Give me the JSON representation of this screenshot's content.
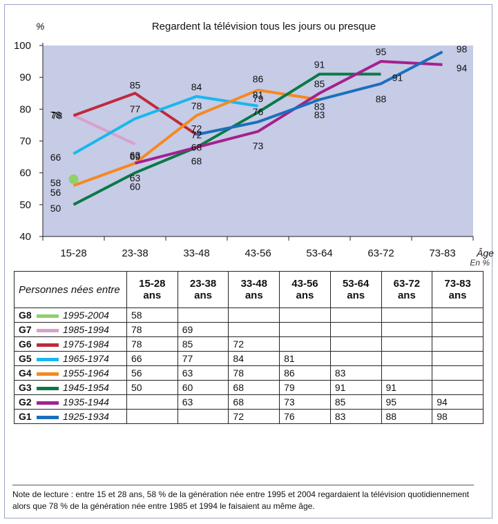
{
  "chart_data": {
    "type": "line",
    "title": "Regardent la télévision tous les jours ou presque",
    "ylabel": "%",
    "xlabel": "Âge",
    "ylim": [
      40,
      100
    ],
    "yticks": [
      40,
      50,
      60,
      70,
      80,
      90,
      100
    ],
    "grid": false,
    "categories": [
      "15-28",
      "23-38",
      "33-48",
      "43-56",
      "53-64",
      "63-72",
      "73-83"
    ],
    "series": [
      {
        "name": "G8",
        "period": "1995-2004",
        "color": "#8fd06a",
        "values": [
          58,
          null,
          null,
          null,
          null,
          null,
          null
        ]
      },
      {
        "name": "G7",
        "period": "1985-1994",
        "color": "#d9a0cc",
        "values": [
          78,
          69,
          null,
          null,
          null,
          null,
          null
        ]
      },
      {
        "name": "G6",
        "period": "1975-1984",
        "color": "#bf2a3a",
        "values": [
          78,
          85,
          72,
          null,
          null,
          null,
          null
        ]
      },
      {
        "name": "G5",
        "period": "1965-1974",
        "color": "#19b7ee",
        "values": [
          66,
          77,
          84,
          81,
          null,
          null,
          null
        ]
      },
      {
        "name": "G4",
        "period": "1955-1964",
        "color": "#f5891f",
        "values": [
          56,
          63,
          78,
          86,
          83,
          null,
          null
        ]
      },
      {
        "name": "G3",
        "period": "1945-1954",
        "color": "#0a7a45",
        "values": [
          50,
          60,
          68,
          79,
          91,
          91,
          null
        ]
      },
      {
        "name": "G2",
        "period": "1935-1944",
        "color": "#a3218e",
        "values": [
          null,
          63,
          68,
          73,
          85,
          95,
          94
        ]
      },
      {
        "name": "G1",
        "period": "1925-1934",
        "color": "#1a6fbc",
        "values": [
          null,
          null,
          72,
          76,
          83,
          88,
          98
        ]
      }
    ]
  },
  "chart_colors": {
    "plot_background": "#c6cbe6",
    "frame_border": "#9aa4c8"
  },
  "unit_note": "En %",
  "table": {
    "row_header_title": "Personnes nées entre",
    "columns": [
      "15-28\nans",
      "23-38\nans",
      "33-48\nans",
      "43-56\nans",
      "53-64\nans",
      "63-72\nans",
      "73-83\nans"
    ]
  },
  "note": "Note de lecture : entre 15 et 28 ans, 58 % de la génération née entre 1995 et 2004 regardaient la télévision quotidiennement alors que 78 % de la génération née entre 1985 et 1994 le faisaient au même âge."
}
